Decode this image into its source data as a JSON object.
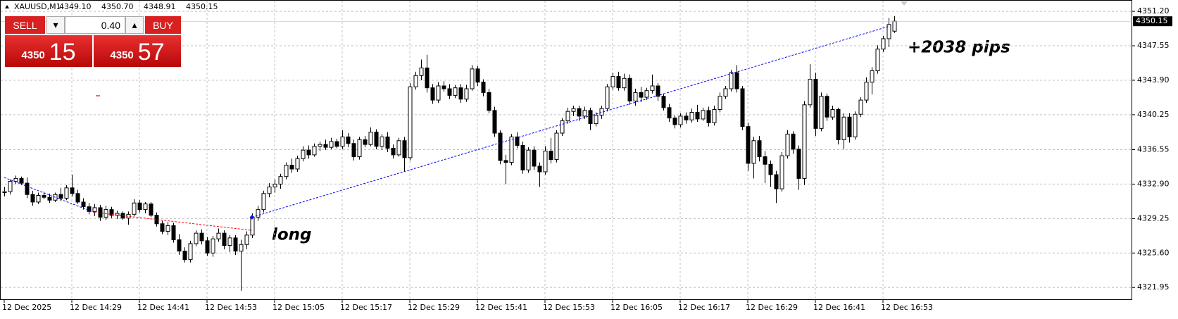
{
  "chart_data": {
    "type": "candlestick",
    "symbol": "XAUUSD,M1",
    "header_values": [
      "4349.10",
      "4350.70",
      "4348.91",
      "4350.15"
    ],
    "ylim": [
      4320.7,
      4352.4
    ],
    "yticks": [
      {
        "value": 4351.2,
        "label": "4351.20"
      },
      4347.55,
      {
        "value": 4343.9,
        "label": "4343.90"
      },
      4340.25,
      4336.55,
      {
        "value": 4332.9,
        "label": "4332.90"
      },
      4329.25,
      {
        "value": 4325.6,
        "label": "4325.60"
      },
      4321.95
    ],
    "xticks": [
      {
        "value": 0,
        "label": "12 Dec 2025"
      },
      {
        "value": 12,
        "label": "12 Dec 14:29"
      },
      {
        "value": 24,
        "label": "12 Dec 14:41"
      },
      {
        "value": 36,
        "label": "12 Dec 14:53"
      },
      {
        "value": 48,
        "label": "12 Dec 15:05"
      },
      {
        "value": 60,
        "label": "12 Dec 15:17"
      },
      {
        "value": 72,
        "label": "12 Dec 15:29"
      },
      {
        "value": 84,
        "label": "12 Dec 15:41"
      },
      {
        "value": 96,
        "label": "12 Dec 15:53"
      },
      {
        "value": 108,
        "label": "12 Dec 16:05"
      },
      {
        "value": 120,
        "label": "12 Dec 16:17"
      },
      {
        "value": 132,
        "label": "12 Dec 16:29"
      },
      {
        "value": 144,
        "label": "12 Dec 16:41"
      },
      {
        "value": 156,
        "label": "12 Dec 16:53"
      }
    ],
    "grid": true,
    "up_color": "#ffffff",
    "down_color": "#000000",
    "candles": [
      [
        4332.0,
        4332.6,
        4331.6,
        4332.1
      ],
      [
        4332.1,
        4333.4,
        4331.8,
        4333.2
      ],
      [
        4333.2,
        4333.8,
        4332.9,
        4333.5
      ],
      [
        4333.5,
        4333.7,
        4332.8,
        4333.0
      ],
      [
        4333.0,
        4333.6,
        4331.4,
        4331.8
      ],
      [
        4331.8,
        4332.2,
        4330.6,
        4331.0
      ],
      [
        4331.0,
        4332.0,
        4330.8,
        4331.7
      ],
      [
        4331.7,
        4332.1,
        4331.3,
        4331.5
      ],
      [
        4331.5,
        4331.9,
        4330.9,
        4331.2
      ],
      [
        4331.2,
        4332.0,
        4331.0,
        4331.8
      ],
      [
        4331.8,
        4332.5,
        4331.1,
        4331.4
      ],
      [
        4331.4,
        4332.8,
        4331.2,
        4332.5
      ],
      [
        4332.5,
        4333.9,
        4331.6,
        4331.9
      ],
      [
        4331.9,
        4332.3,
        4330.8,
        4331.0
      ],
      [
        4331.0,
        4331.4,
        4330.2,
        4330.5
      ],
      [
        4330.5,
        4330.9,
        4329.7,
        4330.0
      ],
      [
        4330.0,
        4330.8,
        4329.5,
        4330.4
      ],
      [
        4330.4,
        4330.7,
        4329.0,
        4329.4
      ],
      [
        4329.4,
        4330.6,
        4329.1,
        4330.2
      ],
      [
        4330.2,
        4330.5,
        4329.3,
        4329.6
      ],
      [
        4329.6,
        4330.1,
        4329.2,
        4329.8
      ],
      [
        4329.8,
        4330.0,
        4329.1,
        4329.3
      ],
      [
        4329.3,
        4330.0,
        4328.6,
        4329.7
      ],
      [
        4329.7,
        4331.3,
        4329.5,
        4330.9
      ],
      [
        4330.9,
        4331.2,
        4329.9,
        4330.2
      ],
      [
        4330.2,
        4331.0,
        4329.8,
        4330.8
      ],
      [
        4330.8,
        4331.0,
        4329.4,
        4329.6
      ],
      [
        4329.6,
        4329.9,
        4328.4,
        4328.7
      ],
      [
        4328.7,
        4329.0,
        4327.6,
        4327.9
      ],
      [
        4327.9,
        4328.9,
        4327.5,
        4328.5
      ],
      [
        4328.5,
        4328.8,
        4326.7,
        4327.0
      ],
      [
        4327.0,
        4327.6,
        4325.4,
        4325.8
      ],
      [
        4325.8,
        4326.2,
        4324.6,
        4324.9
      ],
      [
        4324.9,
        4326.9,
        4324.6,
        4326.6
      ],
      [
        4326.6,
        4328.0,
        4326.3,
        4327.7
      ],
      [
        4327.7,
        4328.1,
        4326.5,
        4326.9
      ],
      [
        4326.9,
        4327.3,
        4325.3,
        4325.6
      ],
      [
        4325.6,
        4327.4,
        4325.2,
        4327.1
      ],
      [
        4327.1,
        4328.2,
        4326.8,
        4327.7
      ],
      [
        4327.7,
        4328.0,
        4326.0,
        4326.4
      ],
      [
        4326.4,
        4327.5,
        4325.7,
        4327.2
      ],
      [
        4327.2,
        4327.5,
        4325.4,
        4325.8
      ],
      [
        4325.8,
        4327.0,
        4321.6,
        4326.5
      ],
      [
        4326.5,
        4327.9,
        4326.0,
        4327.5
      ],
      [
        4327.5,
        4329.8,
        4327.2,
        4329.4
      ],
      [
        4329.4,
        4330.6,
        4329.0,
        4330.2
      ],
      [
        4330.2,
        4332.2,
        4329.9,
        4331.9
      ],
      [
        4331.9,
        4333.0,
        4331.5,
        4332.6
      ],
      [
        4332.6,
        4333.4,
        4332.0,
        4332.9
      ],
      [
        4332.9,
        4334.0,
        4332.4,
        4333.7
      ],
      [
        4333.7,
        4335.2,
        4333.4,
        4334.9
      ],
      [
        4334.9,
        4335.6,
        4334.1,
        4334.5
      ],
      [
        4334.5,
        4335.9,
        4334.2,
        4335.6
      ],
      [
        4335.6,
        4336.9,
        4335.3,
        4336.5
      ],
      [
        4336.5,
        4337.0,
        4335.6,
        4336.0
      ],
      [
        4336.0,
        4337.2,
        4335.8,
        4336.9
      ],
      [
        4336.9,
        4337.4,
        4336.4,
        4337.1
      ],
      [
        4337.1,
        4337.6,
        4336.5,
        4336.8
      ],
      [
        4336.8,
        4337.8,
        4336.6,
        4337.4
      ],
      [
        4337.4,
        4337.7,
        4336.7,
        4336.9
      ],
      [
        4336.9,
        4338.6,
        4336.6,
        4337.9
      ],
      [
        4337.9,
        4338.3,
        4336.8,
        4337.2
      ],
      [
        4337.2,
        4337.6,
        4335.4,
        4335.8
      ],
      [
        4335.8,
        4337.9,
        4335.5,
        4337.6
      ],
      [
        4337.6,
        4338.0,
        4336.8,
        4337.1
      ],
      [
        4337.1,
        4338.9,
        4336.9,
        4338.4
      ],
      [
        4338.4,
        4338.7,
        4336.6,
        4336.9
      ],
      [
        4336.9,
        4338.2,
        4336.5,
        4337.9
      ],
      [
        4337.9,
        4338.4,
        4336.3,
        4336.7
      ],
      [
        4336.7,
        4337.1,
        4335.6,
        4336.0
      ],
      [
        4336.0,
        4337.8,
        4335.8,
        4337.5
      ],
      [
        4337.5,
        4337.9,
        4334.2,
        4335.7
      ],
      [
        4335.7,
        4343.6,
        4335.4,
        4343.2
      ],
      [
        4343.2,
        4344.8,
        4342.9,
        4344.4
      ],
      [
        4344.4,
        4346.1,
        4343.9,
        4345.2
      ],
      [
        4345.2,
        4346.6,
        4342.6,
        4343.1
      ],
      [
        4343.1,
        4343.5,
        4341.4,
        4341.8
      ],
      [
        4341.8,
        4343.7,
        4341.5,
        4343.3
      ],
      [
        4343.3,
        4343.8,
        4342.7,
        4343.0
      ],
      [
        4343.0,
        4343.5,
        4341.9,
        4342.3
      ],
      [
        4342.3,
        4343.4,
        4342.0,
        4343.1
      ],
      [
        4343.1,
        4343.5,
        4341.5,
        4341.9
      ],
      [
        4341.9,
        4343.4,
        4341.6,
        4343.0
      ],
      [
        4343.0,
        4345.5,
        4342.8,
        4345.1
      ],
      [
        4345.1,
        4345.4,
        4343.3,
        4343.7
      ],
      [
        4343.7,
        4344.0,
        4342.2,
        4342.6
      ],
      [
        4342.6,
        4343.0,
        4340.4,
        4340.7
      ],
      [
        4340.7,
        4341.1,
        4337.9,
        4338.3
      ],
      [
        4338.3,
        4338.6,
        4335.0,
        4335.4
      ],
      [
        4335.4,
        4336.0,
        4332.9,
        4335.2
      ],
      [
        4335.2,
        4338.2,
        4334.9,
        4337.9
      ],
      [
        4337.9,
        4338.4,
        4336.7,
        4337.0
      ],
      [
        4337.0,
        4337.4,
        4334.0,
        4334.4
      ],
      [
        4334.4,
        4336.8,
        4334.1,
        4336.5
      ],
      [
        4336.5,
        4336.9,
        4334.4,
        4334.8
      ],
      [
        4334.8,
        4335.2,
        4332.6,
        4334.2
      ],
      [
        4334.2,
        4336.9,
        4333.9,
        4336.4
      ],
      [
        4336.4,
        4337.8,
        4335.1,
        4335.5
      ],
      [
        4335.5,
        4338.6,
        4335.2,
        4338.3
      ],
      [
        4338.3,
        4339.9,
        4338.0,
        4339.6
      ],
      [
        4339.6,
        4341.0,
        4339.3,
        4340.6
      ],
      [
        4340.6,
        4341.2,
        4340.1,
        4340.9
      ],
      [
        4340.9,
        4341.2,
        4339.6,
        4340.1
      ],
      [
        4340.1,
        4341.1,
        4339.8,
        4340.7
      ],
      [
        4340.7,
        4341.0,
        4338.6,
        4339.3
      ],
      [
        4339.3,
        4340.5,
        4339.0,
        4340.2
      ],
      [
        4340.2,
        4341.2,
        4339.8,
        4340.9
      ],
      [
        4340.9,
        4343.5,
        4340.6,
        4343.2
      ],
      [
        4343.2,
        4344.7,
        4342.9,
        4344.3
      ],
      [
        4344.3,
        4344.8,
        4342.8,
        4343.1
      ],
      [
        4343.1,
        4344.6,
        4342.8,
        4344.1
      ],
      [
        4344.1,
        4344.5,
        4341.3,
        4341.7
      ],
      [
        4341.7,
        4343.0,
        4341.2,
        4342.6
      ],
      [
        4342.6,
        4343.2,
        4341.6,
        4342.1
      ],
      [
        4342.1,
        4343.1,
        4341.8,
        4342.8
      ],
      [
        4342.8,
        4344.5,
        4342.5,
        4343.3
      ],
      [
        4343.3,
        4343.6,
        4341.7,
        4342.2
      ],
      [
        4342.2,
        4342.5,
        4340.7,
        4341.0
      ],
      [
        4341.0,
        4341.4,
        4339.5,
        4339.9
      ],
      [
        4339.9,
        4340.2,
        4338.8,
        4339.2
      ],
      [
        4339.2,
        4340.4,
        4338.9,
        4340.1
      ],
      [
        4340.1,
        4340.5,
        4339.3,
        4339.7
      ],
      [
        4339.7,
        4340.9,
        4339.4,
        4340.5
      ],
      [
        4340.5,
        4341.3,
        4339.5,
        4339.8
      ],
      [
        4339.8,
        4341.0,
        4339.6,
        4340.7
      ],
      [
        4340.7,
        4341.1,
        4339.0,
        4339.4
      ],
      [
        4339.4,
        4341.2,
        4339.1,
        4340.8
      ],
      [
        4340.8,
        4342.6,
        4340.5,
        4342.2
      ],
      [
        4342.2,
        4343.3,
        4341.9,
        4343.0
      ],
      [
        4343.0,
        4345.0,
        4342.7,
        4344.7
      ],
      [
        4344.7,
        4345.5,
        4342.6,
        4343.0
      ],
      [
        4343.0,
        4343.3,
        4338.6,
        4339.0
      ],
      [
        4339.0,
        4339.4,
        4334.3,
        4335.1
      ],
      [
        4335.1,
        4337.9,
        4333.5,
        4337.5
      ],
      [
        4337.5,
        4338.0,
        4335.3,
        4335.8
      ],
      [
        4335.8,
        4336.4,
        4333.0,
        4335.0
      ],
      [
        4335.0,
        4335.4,
        4332.6,
        4333.9
      ],
      [
        4333.9,
        4334.3,
        4330.9,
        4332.4
      ],
      [
        4332.4,
        4336.3,
        4332.1,
        4335.9
      ],
      [
        4335.9,
        4338.6,
        4335.6,
        4338.2
      ],
      [
        4338.2,
        4338.5,
        4336.1,
        4336.6
      ],
      [
        4336.6,
        4337.0,
        4332.3,
        4333.5
      ],
      [
        4333.5,
        4341.7,
        4332.8,
        4341.3
      ],
      [
        4341.3,
        4345.6,
        4341.0,
        4344.0
      ],
      [
        4344.0,
        4344.7,
        4338.0,
        4338.8
      ],
      [
        4338.8,
        4342.6,
        4338.5,
        4342.2
      ],
      [
        4342.2,
        4342.5,
        4339.6,
        4340.0
      ],
      [
        4340.0,
        4341.2,
        4339.7,
        4340.8
      ],
      [
        4340.8,
        4341.0,
        4337.1,
        4337.6
      ],
      [
        4337.6,
        4340.4,
        4336.6,
        4340.0
      ],
      [
        4340.0,
        4340.4,
        4337.3,
        4337.9
      ],
      [
        4337.9,
        4340.6,
        4337.6,
        4340.3
      ],
      [
        4340.3,
        4342.1,
        4340.0,
        4341.8
      ],
      [
        4341.8,
        4344.2,
        4341.5,
        4343.7
      ],
      [
        4343.7,
        4345.3,
        4342.4,
        4344.9
      ],
      [
        4344.9,
        4347.6,
        4344.6,
        4347.2
      ],
      [
        4347.2,
        4348.6,
        4346.9,
        4348.3
      ],
      [
        4348.3,
        4350.5,
        4347.4,
        4349.8
      ],
      [
        4349.1,
        4350.7,
        4348.91,
        4350.15
      ]
    ],
    "trade_lines": [
      {
        "x": [
          0,
          16
        ],
        "y": [
          4333.6,
          4329.9
        ],
        "color": "#0000ff"
      },
      {
        "x": [
          16,
          44
        ],
        "y": [
          4329.9,
          4328.0
        ],
        "color": "#ff0000"
      },
      {
        "x": [
          44,
          157
        ],
        "y": [
          4329.4,
          4349.6
        ],
        "color": "#0000ff"
      }
    ],
    "annotations": [
      "long",
      "+2038 pips"
    ],
    "panel": {
      "sell": "SELL",
      "buy": "BUY",
      "lot": "0.40",
      "sell_big": "4350",
      "sell_small": "15",
      "buy_big": "4350",
      "buy_small": "57"
    }
  }
}
